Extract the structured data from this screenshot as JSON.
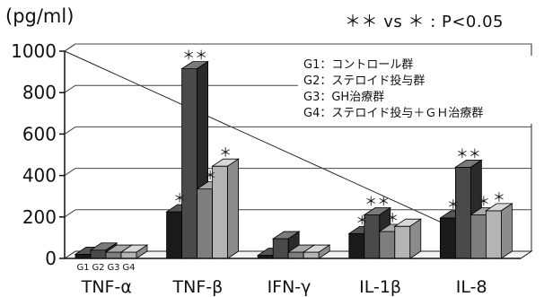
{
  "unit_label": "(pg/ml)",
  "significance_note": "＊＊ vs ＊ : P<0.05",
  "chart_data": {
    "type": "bar",
    "categories": [
      "TNF-α",
      "TNF-β",
      "IFN-γ",
      "IL-1β",
      "IL-8"
    ],
    "group_labels": [
      "G1",
      "G2",
      "G3",
      "G4"
    ],
    "series": [
      {
        "name": "G1：コントロール群",
        "values": [
          20,
          225,
          15,
          120,
          195
        ],
        "color": "#1a1a1a",
        "top": "#555555",
        "side": "#000000"
      },
      {
        "name": "G2：ステロイド投与群",
        "values": [
          40,
          915,
          95,
          210,
          440
        ],
        "color": "#4a4a4a",
        "top": "#7a7a7a",
        "side": "#2a2a2a"
      },
      {
        "name": "G3：GH治療群",
        "values": [
          30,
          335,
          30,
          130,
          210
        ],
        "color": "#7e7e7e",
        "top": "#a8a8a8",
        "side": "#5a5a5a"
      },
      {
        "name": "G4：ステロイド投与＋ＧＨ治療群",
        "values": [
          30,
          445,
          30,
          155,
          230
        ],
        "color": "#b4b4b4",
        "top": "#d8d8d8",
        "side": "#8c8c8c"
      }
    ],
    "annotations": [
      {
        "category": 1,
        "group": 0,
        "text": "＊"
      },
      {
        "category": 1,
        "group": 1,
        "text": "＊＊"
      },
      {
        "category": 1,
        "group": 2,
        "text": "＊"
      },
      {
        "category": 1,
        "group": 3,
        "text": "＊"
      },
      {
        "category": 3,
        "group": 0,
        "text": "＊"
      },
      {
        "category": 3,
        "group": 1,
        "text": "＊＊"
      },
      {
        "category": 3,
        "group": 2,
        "text": "＊"
      },
      {
        "category": 4,
        "group": 0,
        "text": "＊"
      },
      {
        "category": 4,
        "group": 1,
        "text": "＊＊"
      },
      {
        "category": 4,
        "group": 2,
        "text": "＊"
      },
      {
        "category": 4,
        "group": 3,
        "text": "＊"
      }
    ],
    "yticks": [
      0,
      200,
      400,
      600,
      800,
      1000
    ],
    "ylim": [
      0,
      1000
    ],
    "grid": true,
    "legend_position": "top-right"
  }
}
